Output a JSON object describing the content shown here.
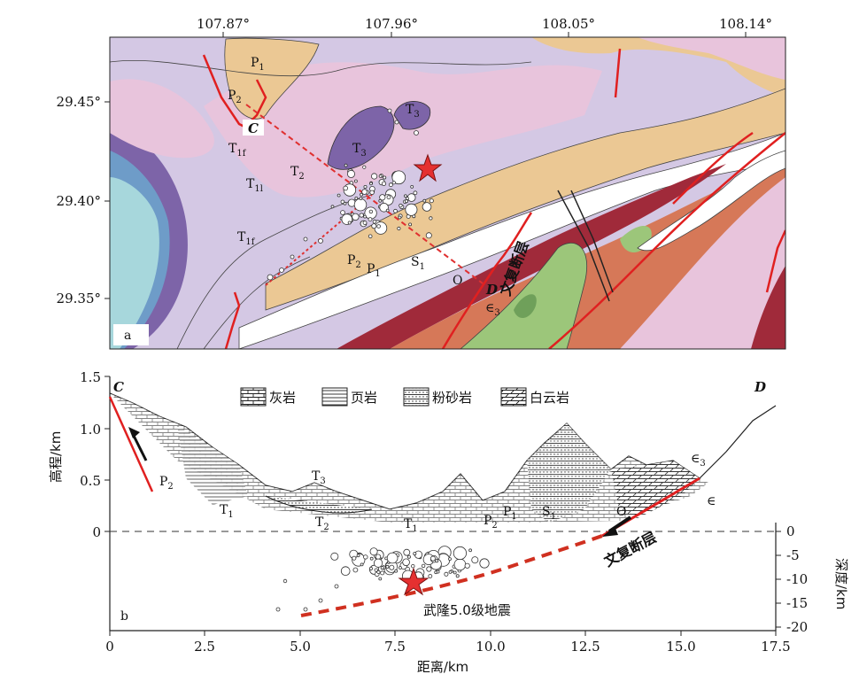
{
  "map": {
    "panel_label": "a",
    "lon_ticks": [
      "107.87°",
      "107.96°",
      "108.05°",
      "108.14°"
    ],
    "lat_ticks": [
      "29.45°",
      "29.40°",
      "29.35°"
    ],
    "section_start": "C",
    "section_end": "D",
    "fault_name": "文复断层",
    "units": [
      {
        "base": "P",
        "sub": "1"
      },
      {
        "base": "P",
        "sub": "2"
      },
      {
        "base": "T",
        "sub": "3"
      },
      {
        "base": "T",
        "sub": "3"
      },
      {
        "base": "T",
        "sub": "1f"
      },
      {
        "base": "T",
        "sub": "2"
      },
      {
        "base": "T",
        "sub": "1l"
      },
      {
        "base": "T",
        "sub": "1f"
      },
      {
        "base": "P",
        "sub": "2"
      },
      {
        "base": "P",
        "sub": "1"
      },
      {
        "base": "S",
        "sub": "1"
      },
      {
        "base": "O",
        "sub": ""
      },
      {
        "base": "∈",
        "sub": "3"
      }
    ],
    "colors": {
      "triassic_lower": "#d4c8e4",
      "triassic_middle": "#e8c4dc",
      "triassic_upper": "#7d64a8",
      "permian": "#ebc894",
      "silurian": "#ffffff",
      "ordovician": "#d67858",
      "ordovician_dark": "#a02a3a",
      "cambrian": "#9cc67a",
      "lake": "#a7d7dc",
      "fault": "#e02020",
      "section_line": "#e03030",
      "epicenter": "#e53030"
    }
  },
  "section": {
    "panel_label": "b",
    "left_axis_label": "高程/km",
    "right_axis_label": "深度/km",
    "x_axis_label": "距离/km",
    "elev_ticks": [
      "1.5",
      "1.0",
      "0.5",
      "0"
    ],
    "depth_ticks": [
      "0",
      "-5",
      "-10",
      "-15",
      "-20"
    ],
    "dist_ticks": [
      "0",
      "2.5",
      "5.0",
      "7.5",
      "10.0",
      "12.5",
      "15.0",
      "17.5"
    ],
    "start_label": "C",
    "end_label": "D",
    "legend": [
      "灰岩",
      "页岩",
      "粉砂岩",
      "白云岩"
    ],
    "fault_name": "文复断层",
    "quake_label": "武隆5.0级地震",
    "units": [
      {
        "base": "P",
        "sub": "2"
      },
      {
        "base": "T",
        "sub": "1"
      },
      {
        "base": "T",
        "sub": "3"
      },
      {
        "base": "T",
        "sub": "2"
      },
      {
        "base": "T",
        "sub": "1"
      },
      {
        "base": "P",
        "sub": "2"
      },
      {
        "base": "P",
        "sub": "1"
      },
      {
        "base": "S",
        "sub": "1"
      },
      {
        "base": "O",
        "sub": ""
      },
      {
        "base": "∈",
        "sub": "3"
      },
      {
        "base": "∈",
        "sub": ""
      }
    ]
  }
}
